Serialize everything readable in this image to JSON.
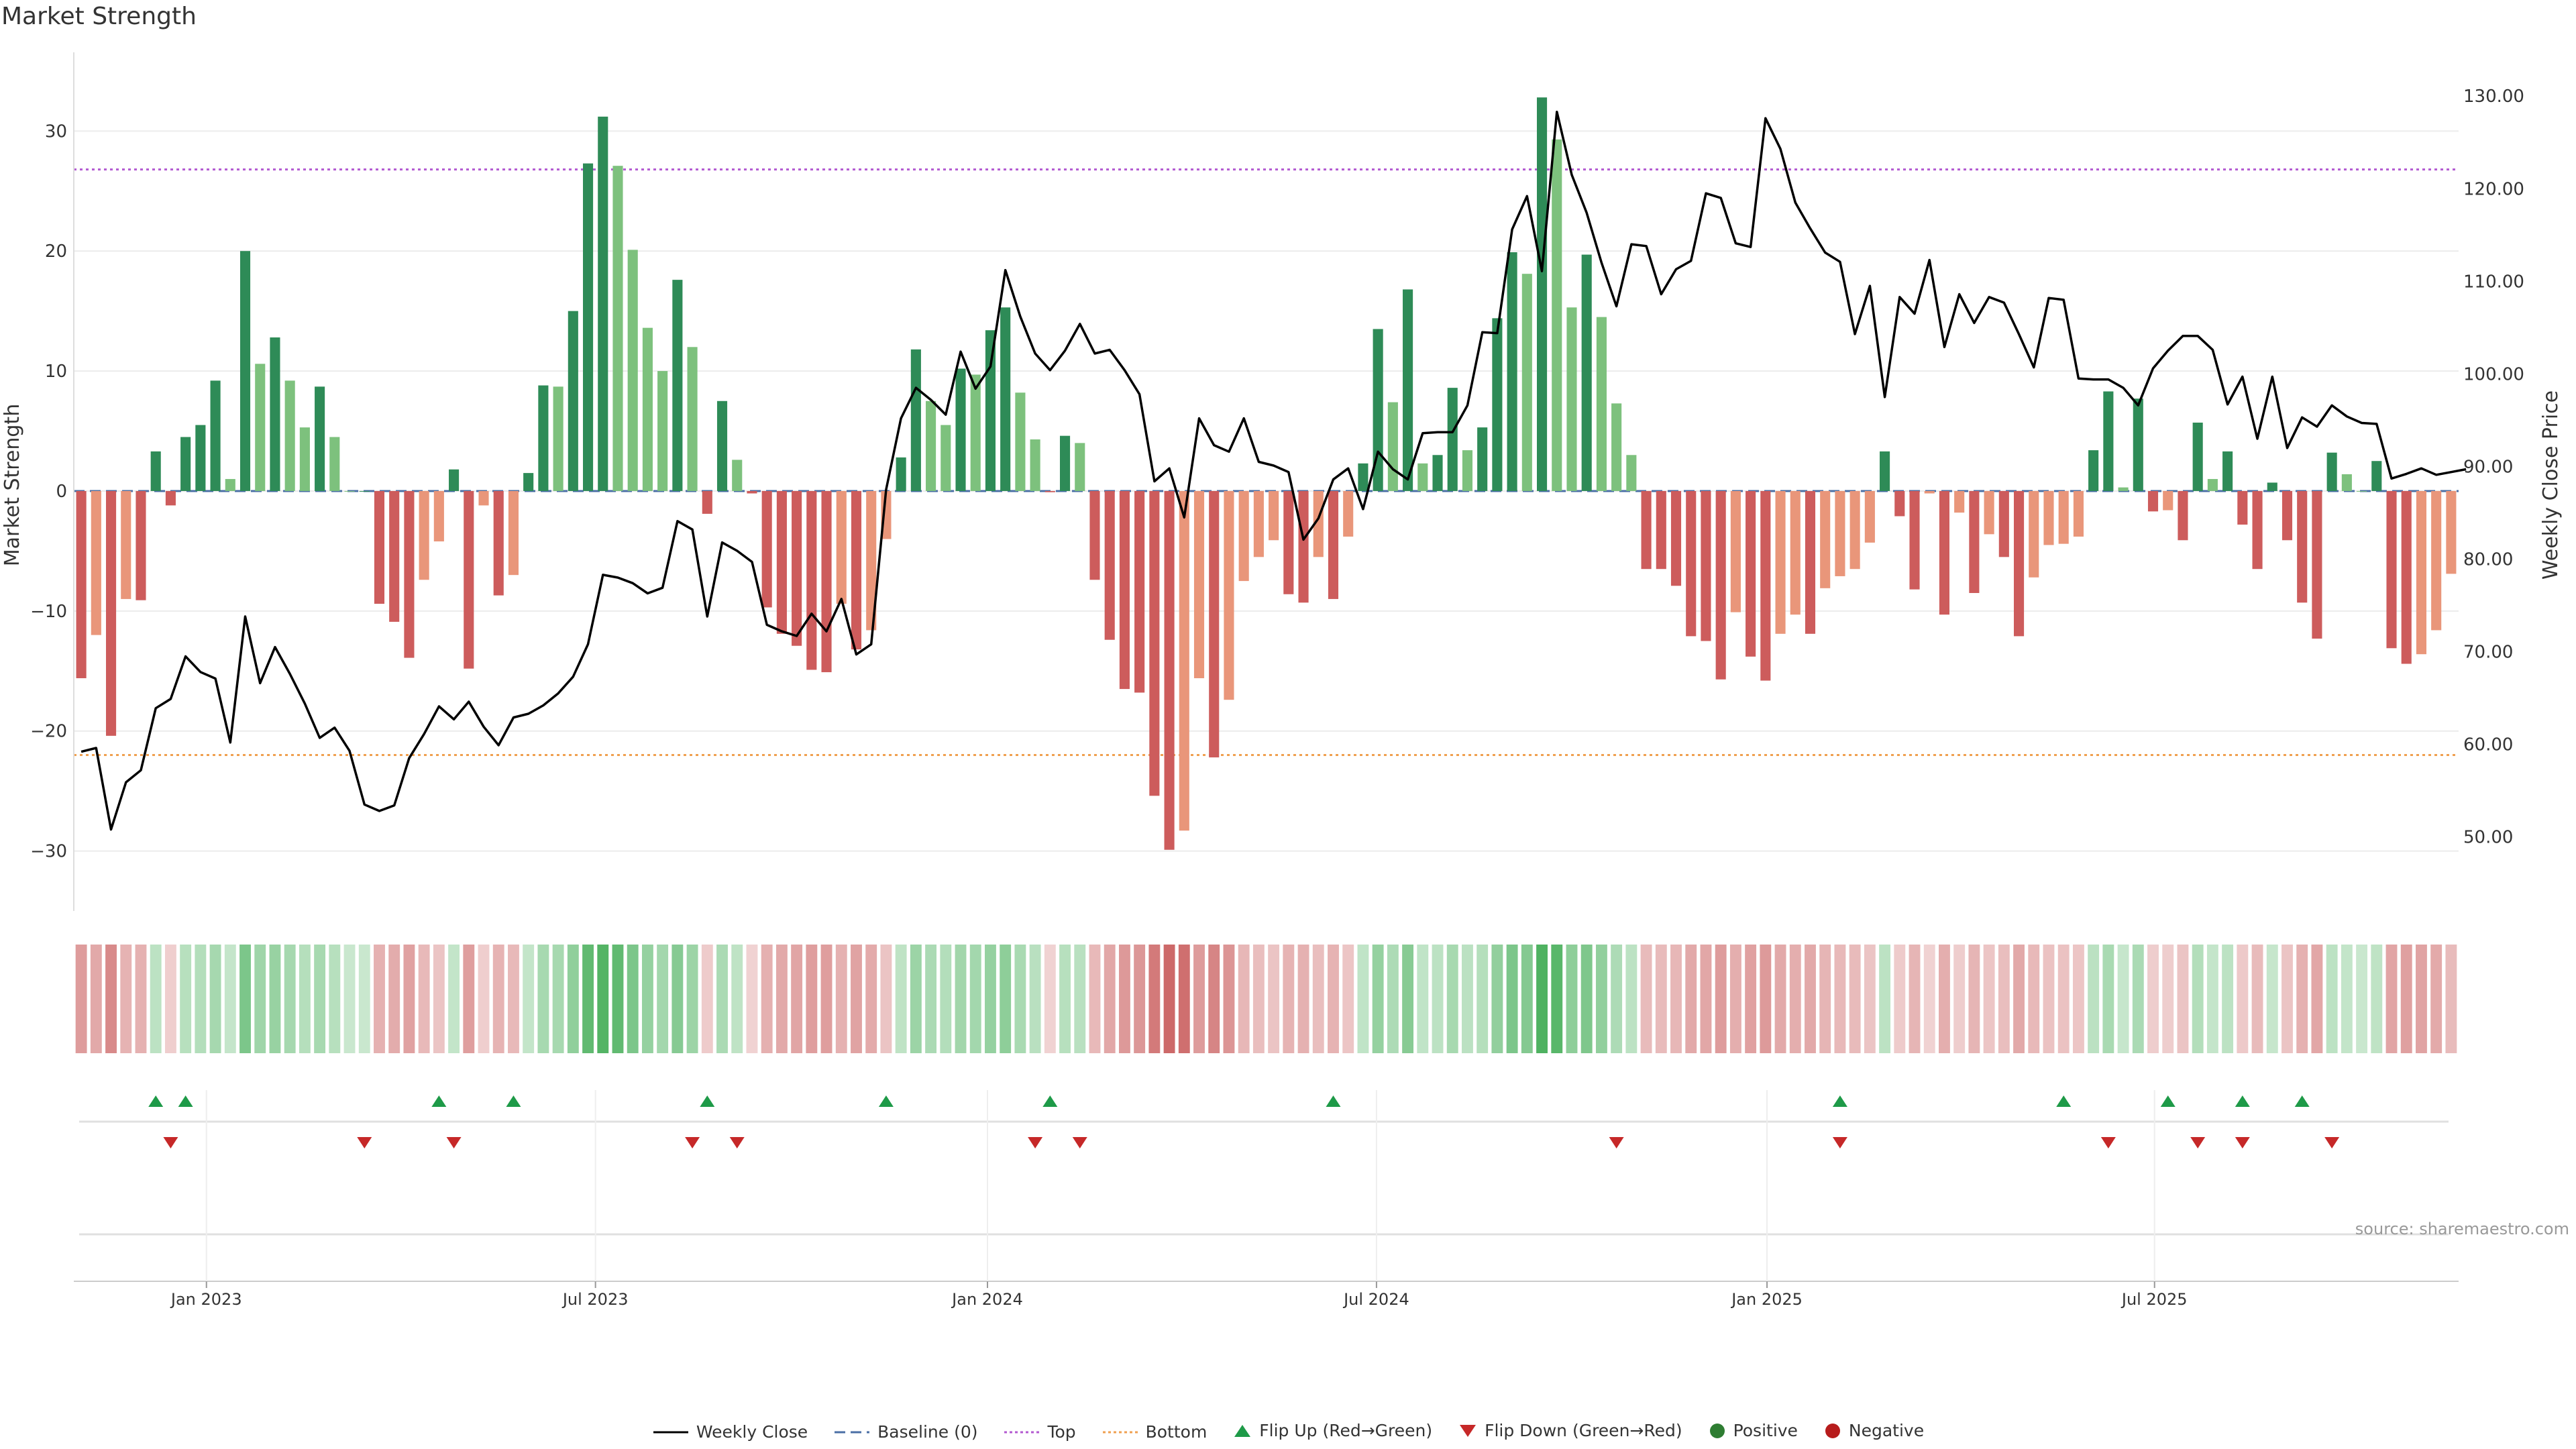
{
  "title": "Market Strength",
  "source": "source: sharemaestro.com",
  "colors": {
    "pos_dark": "#2e8b57",
    "pos_light": "#7dc17d",
    "neg_dark": "#cd5c5c",
    "neg_light": "#e9967a",
    "top_line": "#b35ad1",
    "bottom_line": "#f0a050",
    "baseline": "#4a6fa5",
    "price_line": "#000000",
    "flip_up": "#1e9a48",
    "flip_down": "#c62828"
  },
  "chart_data": {
    "type": "bar",
    "title": "Market Strength",
    "ylabel": "Market Strength",
    "y2label": "Weekly Close Price",
    "ylim": [
      -35,
      36
    ],
    "y2lim": [
      42,
      134
    ],
    "yticks": [
      "30",
      "20",
      "10",
      "0",
      "−10",
      "−20",
      "−30"
    ],
    "y2ticks": [
      "130.00",
      "120.00",
      "110.00",
      "100.00",
      "90.00",
      "80.00",
      "70.00",
      "60.00",
      "50.00"
    ],
    "xticks": [
      "Jan 2023",
      "Jul 2023",
      "Jan 2024",
      "Jul 2024",
      "Jan 2025",
      "Jul 2025"
    ],
    "top_level": 26.8,
    "bottom_level": -22.0,
    "strength": [
      -15.6,
      -12,
      -20.4,
      -9,
      -9.1,
      3.3,
      -1.2,
      4.5,
      5.5,
      9.2,
      1,
      20,
      10.6,
      12.8,
      9.2,
      5.3,
      8.7,
      4.5,
      0,
      0,
      -9.4,
      -10.9,
      -13.9,
      -7.4,
      -4.2,
      1.8,
      -14.8,
      -1.2,
      -8.7,
      -7,
      1.5,
      8.8,
      8.7,
      15,
      27.3,
      31.2,
      27.1,
      20.1,
      13.6,
      10,
      17.6,
      12,
      -1.9,
      7.5,
      2.6,
      -0.2,
      -9.7,
      -11.9,
      -12.9,
      -14.9,
      -15.1,
      -9.4,
      -13.2,
      -11.6,
      -4,
      2.8,
      11.8,
      7.5,
      5.5,
      10.2,
      9.7,
      13.4,
      15.3,
      8.2,
      4.3,
      -0.1,
      4.6,
      4,
      -7.4,
      -12.4,
      -16.5,
      -16.8,
      -25.4,
      -29.9,
      -28.3,
      -15.6,
      -22.2,
      -17.4,
      -7.5,
      -5.5,
      -4.1,
      -8.6,
      -9.3,
      -5.5,
      -9,
      -3.8,
      2.3,
      13.5,
      7.4,
      16.8,
      2.3,
      3,
      8.6,
      3.4,
      5.3,
      14.4,
      19.9,
      18.1,
      32.8,
      29.3,
      15.3,
      19.7,
      14.5,
      7.3,
      3,
      -6.5,
      -6.5,
      -7.9,
      -12.1,
      -12.5,
      -15.7,
      -10.1,
      -13.8,
      -15.8,
      -11.9,
      -10.3,
      -11.9,
      -8.1,
      -7.1,
      -6.5,
      -4.3,
      3.3,
      -2.1,
      -8.2,
      -0.2,
      -10.3,
      -1.8,
      -8.5,
      -3.6,
      -5.5,
      -12.1,
      -7.2,
      -4.5,
      -4.4,
      -3.8,
      3.4,
      8.3,
      0.3,
      7.7,
      -1.7,
      -1.6,
      -4.1,
      5.7,
      1,
      3.3,
      -2.8,
      -6.5,
      0.7,
      -4.1,
      -9.3,
      -12.3,
      3.2,
      1.4,
      0,
      2.5,
      -13.1,
      -14.4,
      -13.6,
      -11.6,
      -6.9
    ],
    "price": [
      59.2,
      59.6,
      50.8,
      55.9,
      57.2,
      63.9,
      64.9,
      69.5,
      67.8,
      67.1,
      60.2,
      73.8,
      66.6,
      70.5,
      67.6,
      64.4,
      60.7,
      61.8,
      59.3,
      53.5,
      52.8,
      53.4,
      58.5,
      61.1,
      64.1,
      62.7,
      64.6,
      61.9,
      59.9,
      62.9,
      63.3,
      64.2,
      65.5,
      67.3,
      70.8,
      78.3,
      78,
      77.4,
      76.3,
      76.9,
      84.1,
      83.2,
      73.8,
      81.8,
      80.9,
      79.7,
      72.9,
      72.2,
      71.7,
      74.1,
      72.2,
      75.7,
      69.7,
      70.8,
      87.5,
      95.2,
      98.5,
      97.2,
      95.6,
      102.4,
      98.4,
      100.8,
      111.2,
      106.2,
      102.2,
      100.4,
      102.5,
      105.4,
      102.2,
      102.6,
      100.4,
      97.8,
      88.4,
      89.8,
      84.5,
      95.2,
      92.3,
      91.6,
      95.2,
      90.5,
      90.1,
      89.4,
      82.1,
      84.4,
      88.6,
      89.8,
      85.4,
      91.6,
      89.7,
      88.6,
      93.6,
      93.7,
      93.7,
      96.6,
      104.5,
      104.4,
      115.6,
      119.2,
      111.1,
      128.3,
      121.5,
      117.4,
      112,
      107.3,
      114,
      113.8,
      108.6,
      111.3,
      112.2,
      119.5,
      119,
      114.1,
      113.7,
      127.6,
      124.3,
      118.5,
      115.7,
      113.1,
      112.1,
      104.3,
      109.5,
      97.5,
      108.3,
      106.5,
      112.3,
      102.9,
      108.6,
      105.5,
      108.3,
      107.7,
      104.3,
      100.7,
      108.2,
      108,
      99.5,
      99.4,
      99.4,
      98.5,
      96.6,
      100.6,
      102.5,
      104.1,
      104.1,
      102.6,
      96.7,
      99.7,
      93,
      99.7,
      92,
      95.3,
      94.3,
      96.6,
      95.4,
      94.7,
      94.6,
      88.7,
      89.2,
      89.8,
      89.1,
      89.4,
      89.7
    ],
    "flip_up_weeks": [
      5,
      7,
      24,
      29,
      42,
      54,
      65,
      84,
      118,
      133,
      140,
      145,
      149
    ],
    "flip_down_weeks": [
      6,
      19,
      25,
      41,
      44,
      64,
      67,
      103,
      118,
      136,
      142,
      145,
      151
    ],
    "legend": [
      "Weekly Close",
      "Baseline (0)",
      "Top",
      "Bottom",
      "Flip Up (Red→Green)",
      "Flip Down (Green→Red)",
      "Positive",
      "Negative"
    ]
  }
}
